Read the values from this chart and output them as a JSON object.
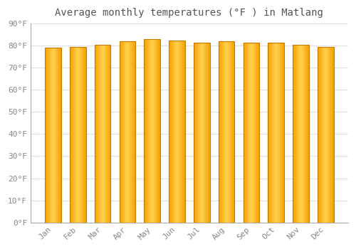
{
  "title": "Average monthly temperatures (°F ) in Matlang",
  "categories": [
    "Jan",
    "Feb",
    "Mar",
    "Apr",
    "May",
    "Jun",
    "Jul",
    "Aug",
    "Sep",
    "Oct",
    "Nov",
    "Dec"
  ],
  "values": [
    79,
    79.5,
    80.5,
    82,
    83,
    82.5,
    81.5,
    82,
    81.5,
    81.5,
    80.5,
    79.5
  ],
  "bar_color_center": "#FFD050",
  "bar_color_edge": "#F5A000",
  "bar_border_color": "#C87800",
  "background_color": "#FFFFFF",
  "plot_bg_color": "#FFFFFF",
  "grid_color": "#DDDDDD",
  "yticks": [
    0,
    10,
    20,
    30,
    40,
    50,
    60,
    70,
    80,
    90
  ],
  "ylim": [
    0,
    90
  ],
  "ylabel_suffix": "°F",
  "title_fontsize": 10,
  "tick_fontsize": 8,
  "tick_color": "#888888",
  "title_color": "#555555",
  "bar_width": 0.65
}
